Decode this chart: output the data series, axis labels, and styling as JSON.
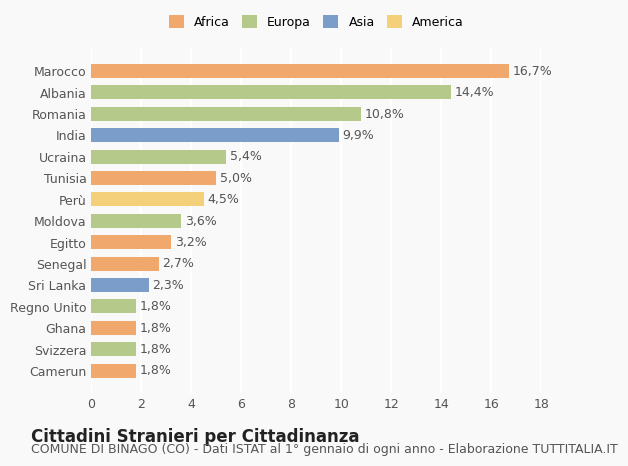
{
  "categories": [
    "Camerun",
    "Svizzera",
    "Ghana",
    "Regno Unito",
    "Sri Lanka",
    "Senegal",
    "Egitto",
    "Moldova",
    "Perù",
    "Tunisia",
    "Ucraina",
    "India",
    "Romania",
    "Albania",
    "Marocco"
  ],
  "values": [
    1.8,
    1.8,
    1.8,
    1.8,
    2.3,
    2.7,
    3.2,
    3.6,
    4.5,
    5.0,
    5.4,
    9.9,
    10.8,
    14.4,
    16.7
  ],
  "colors": [
    "#f0a86c",
    "#b5c98a",
    "#f0a86c",
    "#b5c98a",
    "#7b9dc9",
    "#f0a86c",
    "#f0a86c",
    "#b5c98a",
    "#f5d07a",
    "#f0a86c",
    "#b5c98a",
    "#7b9dc9",
    "#b5c98a",
    "#b5c98a",
    "#f0a86c"
  ],
  "legend_labels": [
    "Africa",
    "Europa",
    "Asia",
    "America"
  ],
  "legend_colors": [
    "#f0a86c",
    "#b5c98a",
    "#7b9dc9",
    "#f5d07a"
  ],
  "title": "Cittadini Stranieri per Cittadinanza",
  "subtitle": "COMUNE DI BINAGO (CO) - Dati ISTAT al 1° gennaio di ogni anno - Elaborazione TUTTITALIA.IT",
  "xlim": [
    0,
    18
  ],
  "xticks": [
    0,
    2,
    4,
    6,
    8,
    10,
    12,
    14,
    16,
    18
  ],
  "background_color": "#f9f9f9",
  "grid_color": "#ffffff",
  "title_fontsize": 12,
  "subtitle_fontsize": 9,
  "label_fontsize": 9,
  "tick_fontsize": 9
}
